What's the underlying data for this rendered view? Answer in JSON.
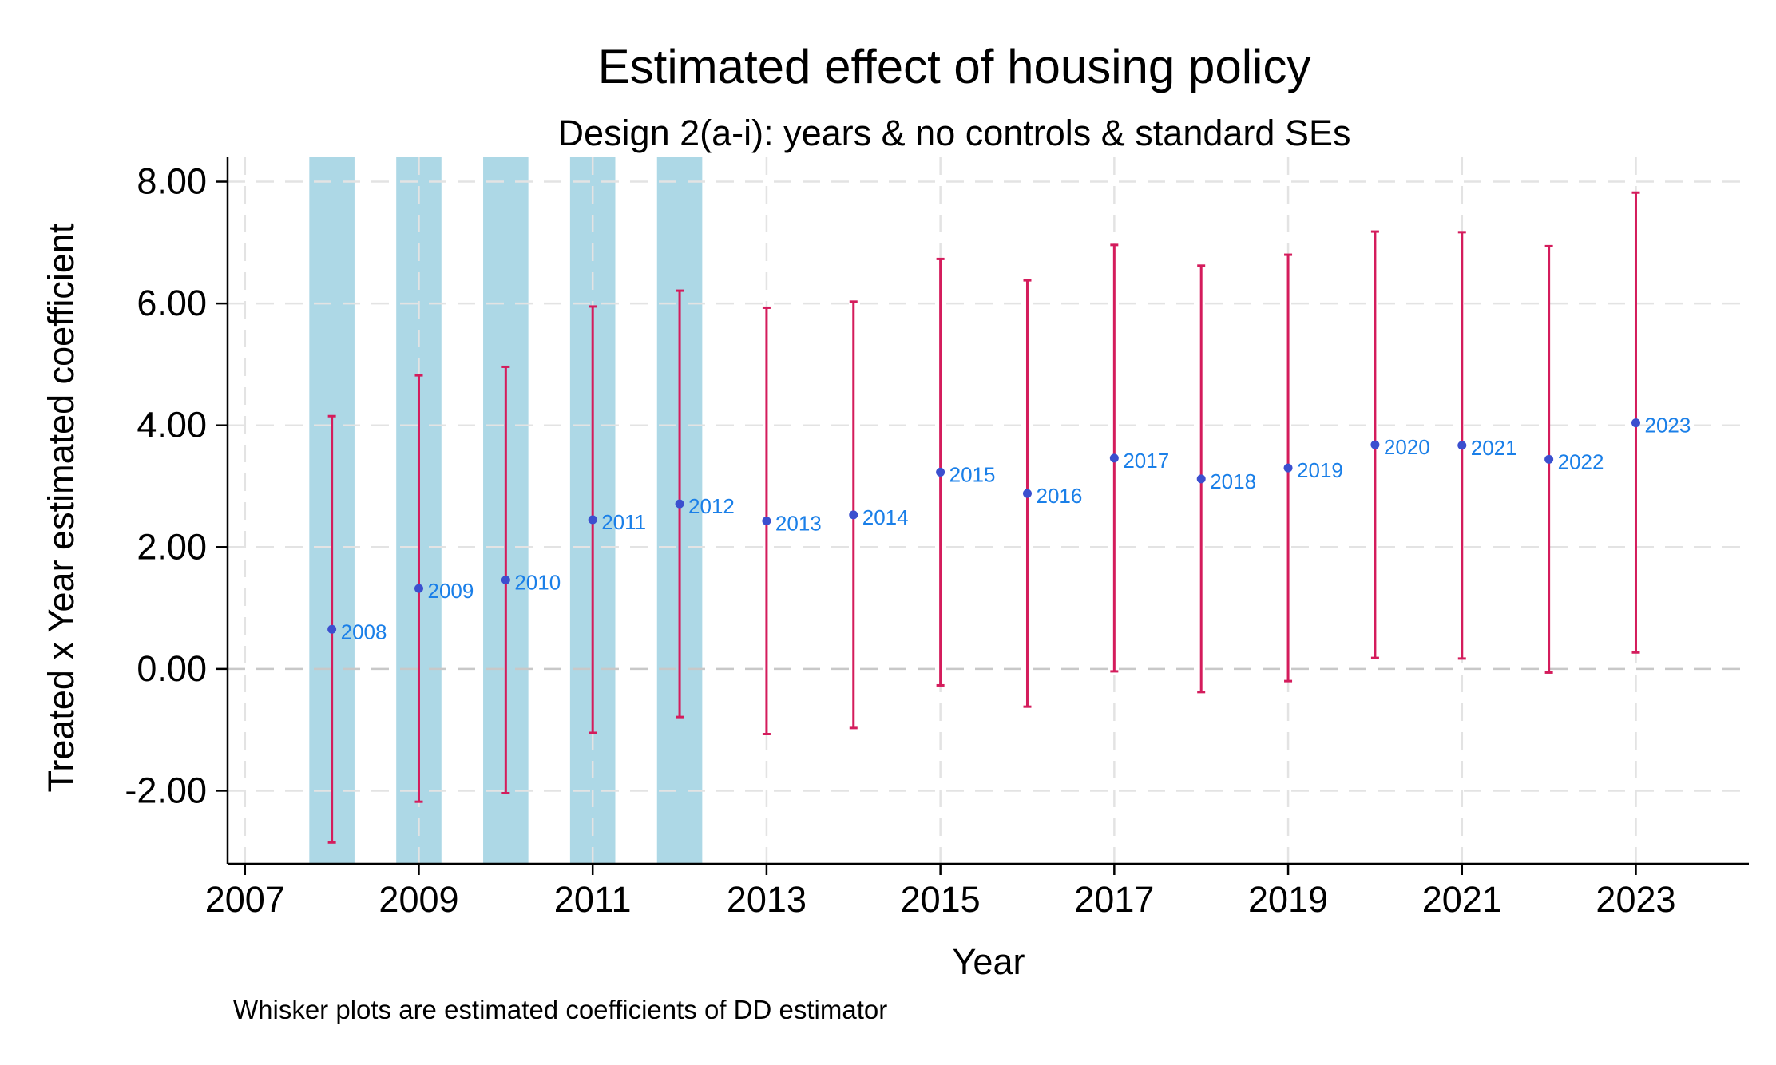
{
  "chart_data": {
    "type": "errorbar",
    "title": "Estimated effect of housing policy",
    "subtitle": "Design 2(a-i): years & no controls & standard SEs",
    "xlabel": "Year",
    "ylabel": "Treated x Year estimated coefficient",
    "note": "Whisker plots are estimated coefficients of DD estimator",
    "xlim": [
      2006.8,
      2024.3
    ],
    "ylim": [
      -3.2,
      8.4
    ],
    "xticks": [
      2007,
      2009,
      2011,
      2013,
      2015,
      2017,
      2019,
      2021,
      2023
    ],
    "yticks": [
      -2,
      0,
      2,
      4,
      6,
      8
    ],
    "ytick_labels": [
      "-2.00",
      "0.00",
      "2.00",
      "4.00",
      "6.00",
      "8.00"
    ],
    "grid": true,
    "shaded_years": [
      2008,
      2009,
      2010,
      2011,
      2012
    ],
    "colors": {
      "shade": "#add8e6",
      "whisker": "#d41c5c",
      "point": "#3b4fcf",
      "label": "#1a7fe8",
      "grid": "#e3e3e3",
      "zero_line": "#c8c8c8"
    },
    "points": [
      {
        "year": 2008,
        "coef": 0.65,
        "low": -2.85,
        "high": 4.15
      },
      {
        "year": 2009,
        "coef": 1.32,
        "low": -2.18,
        "high": 4.82
      },
      {
        "year": 2010,
        "coef": 1.46,
        "low": -2.04,
        "high": 4.96
      },
      {
        "year": 2011,
        "coef": 2.45,
        "low": -1.05,
        "high": 5.95
      },
      {
        "year": 2012,
        "coef": 2.71,
        "low": -0.79,
        "high": 6.21
      },
      {
        "year": 2013,
        "coef": 2.43,
        "low": -1.07,
        "high": 5.93
      },
      {
        "year": 2014,
        "coef": 2.53,
        "low": -0.97,
        "high": 6.03
      },
      {
        "year": 2015,
        "coef": 3.23,
        "low": -0.27,
        "high": 6.73
      },
      {
        "year": 2016,
        "coef": 2.88,
        "low": -0.62,
        "high": 6.38
      },
      {
        "year": 2017,
        "coef": 3.46,
        "low": -0.04,
        "high": 6.96
      },
      {
        "year": 2018,
        "coef": 3.12,
        "low": -0.38,
        "high": 6.62
      },
      {
        "year": 2019,
        "coef": 3.3,
        "low": -0.2,
        "high": 6.8
      },
      {
        "year": 2020,
        "coef": 3.68,
        "low": 0.18,
        "high": 7.18
      },
      {
        "year": 2021,
        "coef": 3.67,
        "low": 0.17,
        "high": 7.17
      },
      {
        "year": 2022,
        "coef": 3.44,
        "low": -0.06,
        "high": 6.94
      },
      {
        "year": 2023,
        "coef": 4.04,
        "low": 0.27,
        "high": 7.82
      }
    ]
  }
}
